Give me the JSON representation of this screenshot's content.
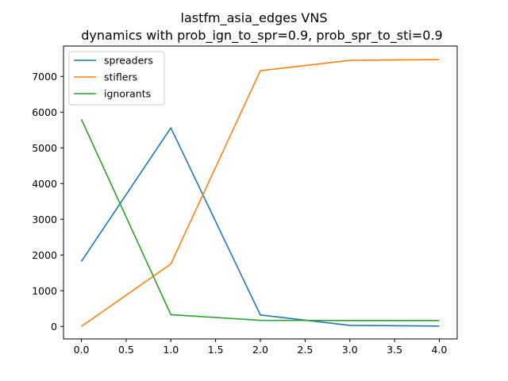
{
  "chart_data": {
    "type": "line",
    "title": "lastfm_asia_edges VNS",
    "subtitle": "dynamics with prob_ign_to_spr=0.9, prob_spr_to_sti=0.9",
    "xlabel": "",
    "ylabel": "",
    "x": [
      0,
      1,
      2,
      3,
      4
    ],
    "series": [
      {
        "name": "spreaders",
        "color": "#1f77b4",
        "values": [
          1820,
          5560,
          320,
          30,
          10
        ]
      },
      {
        "name": "stiflers",
        "color": "#ff7f0e",
        "values": [
          0,
          1750,
          7160,
          7450,
          7470
        ]
      },
      {
        "name": "ignorants",
        "color": "#2ca02c",
        "values": [
          5800,
          330,
          170,
          165,
          165
        ]
      }
    ],
    "xlim": [
      -0.2,
      4.2
    ],
    "ylim": [
      -350,
      7850
    ],
    "xticks": [
      0.0,
      0.5,
      1.0,
      1.5,
      2.0,
      2.5,
      3.0,
      3.5,
      4.0
    ],
    "xtick_labels": [
      "0.0",
      "0.5",
      "1.0",
      "1.5",
      "2.0",
      "2.5",
      "3.0",
      "3.5",
      "4.0"
    ],
    "yticks": [
      0,
      1000,
      2000,
      3000,
      4000,
      5000,
      6000,
      7000
    ],
    "ytick_labels": [
      "0",
      "1000",
      "2000",
      "3000",
      "4000",
      "5000",
      "6000",
      "7000"
    ],
    "grid": false,
    "legend": "top-left"
  }
}
